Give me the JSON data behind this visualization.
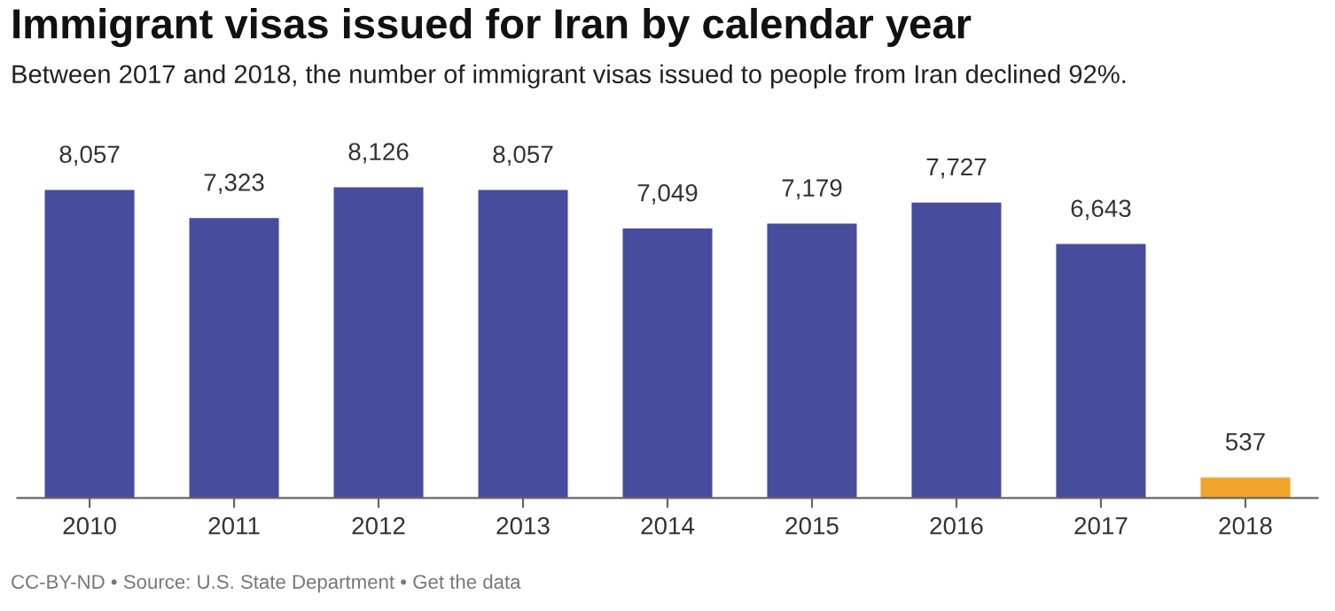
{
  "chart_data": {
    "type": "bar",
    "title": "Immigrant visas issued for Iran by calendar year",
    "subtitle": "Between 2017 and 2018, the number of immigrant visas issued to people from Iran declined 92%.",
    "categories": [
      "2010",
      "2011",
      "2012",
      "2013",
      "2014",
      "2015",
      "2016",
      "2017",
      "2018"
    ],
    "values": [
      8057,
      7323,
      8126,
      8057,
      7049,
      7179,
      7727,
      6643,
      537
    ],
    "value_labels": [
      "8,057",
      "7,323",
      "8,126",
      "8,057",
      "7,049",
      "7,179",
      "7,727",
      "6,643",
      "537"
    ],
    "colors": [
      "#474d9c",
      "#474d9c",
      "#474d9c",
      "#474d9c",
      "#474d9c",
      "#474d9c",
      "#474d9c",
      "#474d9c",
      "#f0a42a"
    ],
    "grid": false,
    "annotations": [
      "CC-BY-ND • Source: U.S. State Department • Get the data"
    ]
  }
}
